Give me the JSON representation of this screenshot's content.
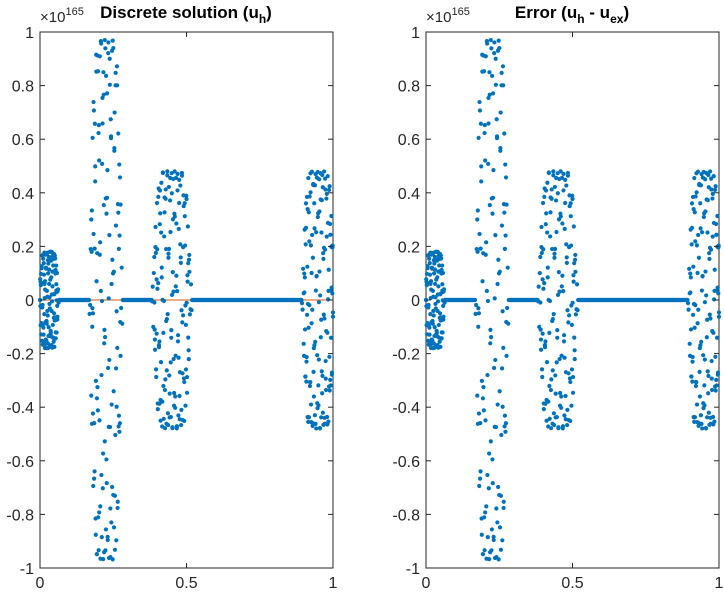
{
  "chart_data": [
    {
      "type": "scatter",
      "title": "Discrete solution (u",
      "title_sub": "h",
      "title_end": ")",
      "exponent_prefix": "×10",
      "exponent": "165",
      "xlim": [
        0,
        1
      ],
      "ylim": [
        -1,
        1
      ],
      "xticks": [
        0,
        0.5,
        1
      ],
      "xtick_labels": [
        "0",
        "0.5",
        "1"
      ],
      "yticks": [
        -1,
        -0.8,
        -0.6,
        -0.4,
        -0.2,
        0,
        0.2,
        0.4,
        0.6,
        0.8,
        1
      ],
      "ytick_labels": [
        "-1",
        "-0.8",
        "-0.6",
        "-0.4",
        "-0.2",
        "0",
        "0.2",
        "0.4",
        "0.6",
        "0.8",
        "1"
      ],
      "grid": false,
      "exact_line": true,
      "marker_color": "#0072BD",
      "line_color": "#D95319",
      "series": [
        {
          "x": [
            0.0,
            0.015,
            0.03,
            0.045,
            0.06
          ],
          "y": [
            0.17,
            -0.1,
            0.05,
            -0.03,
            0.01
          ],
          "amplitude": 0.18
        },
        {
          "x": [
            0.175,
            0.2,
            0.225,
            0.25,
            0.275
          ],
          "y": [
            0.0,
            0.92,
            -0.96,
            0.96,
            0.0
          ],
          "amplitude": 0.97
        },
        {
          "x": [
            0.39,
            0.42,
            0.45,
            0.48,
            0.51
          ],
          "y": [
            0.0,
            0.45,
            -0.46,
            0.48,
            0.0
          ],
          "amplitude": 0.48
        },
        {
          "x": [
            0.9,
            0.925,
            0.95,
            0.975,
            1.0
          ],
          "y": [
            0.0,
            0.45,
            -0.48,
            0.48,
            0.2
          ],
          "amplitude": 0.48
        }
      ]
    },
    {
      "type": "scatter",
      "title": "Error (u",
      "title_sub": "h",
      "title_mid": " - u",
      "title_sub2": "ex",
      "title_end": ")",
      "exponent_prefix": "×10",
      "exponent": "165",
      "xlim": [
        0,
        1
      ],
      "ylim": [
        -1,
        1
      ],
      "xticks": [
        0,
        0.5,
        1
      ],
      "xtick_labels": [
        "0",
        "0.5",
        "1"
      ],
      "yticks": [
        -1,
        -0.8,
        -0.6,
        -0.4,
        -0.2,
        0,
        0.2,
        0.4,
        0.6,
        0.8,
        1
      ],
      "ytick_labels": [
        "-1",
        "-0.8",
        "-0.6",
        "-0.4",
        "-0.2",
        "0",
        "0.2",
        "0.4",
        "0.6",
        "0.8",
        "1"
      ],
      "grid": false,
      "exact_line": false,
      "marker_color": "#0072BD",
      "series": [
        {
          "x": [
            0.0,
            0.015,
            0.03,
            0.045,
            0.06
          ],
          "y": [
            0.17,
            -0.1,
            0.05,
            -0.03,
            0.01
          ],
          "amplitude": 0.18
        },
        {
          "x": [
            0.175,
            0.2,
            0.225,
            0.25,
            0.275
          ],
          "y": [
            0.0,
            0.92,
            -0.96,
            0.96,
            0.0
          ],
          "amplitude": 0.97
        },
        {
          "x": [
            0.39,
            0.42,
            0.45,
            0.48,
            0.51
          ],
          "y": [
            0.0,
            0.45,
            -0.46,
            0.48,
            0.0
          ],
          "amplitude": 0.48
        },
        {
          "x": [
            0.9,
            0.925,
            0.95,
            0.975,
            1.0
          ],
          "y": [
            0.0,
            0.45,
            -0.48,
            0.48,
            0.2
          ],
          "amplitude": 0.48
        }
      ]
    }
  ]
}
